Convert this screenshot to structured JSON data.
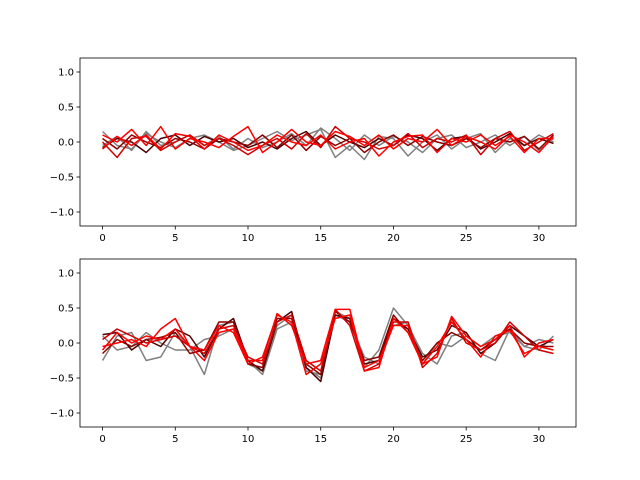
{
  "chart_data": [
    {
      "type": "line",
      "xlim": [
        -1.55,
        32.55
      ],
      "ylim": [
        -1.2,
        1.2
      ],
      "xticks": [
        0,
        5,
        10,
        15,
        20,
        25,
        30
      ],
      "xtick_labels": [
        "0",
        "5",
        "10",
        "15",
        "20",
        "25",
        "30"
      ],
      "yticks": [
        -1.0,
        -0.5,
        0.0,
        0.5,
        1.0
      ],
      "ytick_labels": [
        "−1.0",
        "−0.5",
        "0.0",
        "0.5",
        "1.0"
      ],
      "grid": false,
      "series": [
        {
          "color": "#808080",
          "x": [
            0,
            1,
            2,
            3,
            4,
            5,
            6,
            7,
            8,
            9,
            10,
            11,
            12,
            13,
            14,
            15,
            16,
            17,
            18,
            19,
            20,
            21,
            22,
            23,
            24,
            25,
            26,
            27,
            28,
            29,
            30,
            31
          ],
          "values": [
            0.15,
            -0.05,
            -0.1,
            0.12,
            0.0,
            -0.08,
            0.05,
            0.1,
            0.0,
            -0.12,
            -0.05,
            0.05,
            0.15,
            0.02,
            0.1,
            0.18,
            -0.22,
            -0.05,
            -0.25,
            0.08,
            0.05,
            -0.2,
            0.0,
            0.1,
            -0.1,
            0.05,
            0.12,
            -0.15,
            0.05,
            -0.05,
            0.1,
            0.0
          ]
        },
        {
          "color": "#808080",
          "x": [
            0,
            1,
            2,
            3,
            4,
            5,
            6,
            7,
            8,
            9,
            10,
            11,
            12,
            13,
            14,
            15,
            16,
            17,
            18,
            19,
            20,
            21,
            22,
            23,
            24,
            25,
            26,
            27,
            28,
            29,
            30,
            31
          ],
          "values": [
            -0.05,
            0.08,
            -0.12,
            0.15,
            -0.05,
            0.0,
            0.1,
            -0.05,
            0.08,
            -0.1,
            0.05,
            -0.08,
            0.0,
            0.12,
            -0.05,
            0.2,
            0.05,
            -0.12,
            0.1,
            -0.05,
            0.08,
            0.0,
            -0.15,
            0.05,
            0.1,
            -0.08,
            0.0,
            0.1,
            -0.05,
            0.08,
            -0.12,
            0.05
          ]
        },
        {
          "color": "#4d0000",
          "x": [
            0,
            1,
            2,
            3,
            4,
            5,
            6,
            7,
            8,
            9,
            10,
            11,
            12,
            13,
            14,
            15,
            16,
            17,
            18,
            19,
            20,
            21,
            22,
            23,
            24,
            25,
            26,
            27,
            28,
            29,
            30,
            31
          ],
          "values": [
            -0.08,
            0.05,
            0.0,
            -0.15,
            0.05,
            0.1,
            -0.05,
            0.08,
            0.0,
            0.05,
            -0.08,
            0.0,
            -0.1,
            0.05,
            0.15,
            -0.05,
            0.1,
            0.0,
            -0.08,
            0.05,
            -0.05,
            0.1,
            0.05,
            -0.12,
            0.05,
            0.08,
            -0.1,
            0.0,
            0.12,
            -0.05,
            0.05,
            -0.02
          ]
        },
        {
          "color": "#8b0000",
          "x": [
            0,
            1,
            2,
            3,
            4,
            5,
            6,
            7,
            8,
            9,
            10,
            11,
            12,
            13,
            14,
            15,
            16,
            17,
            18,
            19,
            20,
            21,
            22,
            23,
            24,
            25,
            26,
            27,
            28,
            29,
            30,
            31
          ],
          "values": [
            0.05,
            -0.1,
            0.1,
            0.0,
            -0.08,
            0.05,
            0.0,
            -0.1,
            0.05,
            0.0,
            -0.05,
            0.1,
            -0.08,
            0.1,
            -0.12,
            0.08,
            -0.05,
            0.05,
            -0.15,
            0.0,
            0.1,
            -0.05,
            0.08,
            0.0,
            -0.05,
            0.05,
            -0.08,
            0.05,
            0.0,
            0.08,
            -0.1,
            0.1
          ]
        },
        {
          "color": "#cc0000",
          "x": [
            0,
            1,
            2,
            3,
            4,
            5,
            6,
            7,
            8,
            9,
            10,
            11,
            12,
            13,
            14,
            15,
            16,
            17,
            18,
            19,
            20,
            21,
            22,
            23,
            24,
            25,
            26,
            27,
            28,
            29,
            30,
            31
          ],
          "values": [
            0.0,
            -0.22,
            0.05,
            0.08,
            -0.12,
            0.0,
            0.1,
            -0.05,
            0.05,
            -0.05,
            -0.18,
            -0.05,
            0.05,
            -0.1,
            0.12,
            -0.08,
            0.22,
            0.05,
            0.0,
            -0.1,
            -0.05,
            0.12,
            -0.08,
            0.05,
            0.0,
            0.1,
            -0.18,
            0.05,
            0.15,
            -0.12,
            0.0,
            0.12
          ]
        },
        {
          "color": "#ff0000",
          "x": [
            0,
            1,
            2,
            3,
            4,
            5,
            6,
            7,
            8,
            9,
            10,
            11,
            12,
            13,
            14,
            15,
            16,
            17,
            18,
            19,
            20,
            21,
            22,
            23,
            24,
            25,
            26,
            27,
            28,
            29,
            30,
            31
          ],
          "values": [
            0.1,
            0.0,
            0.18,
            -0.05,
            0.22,
            -0.1,
            0.05,
            0.0,
            -0.08,
            0.08,
            0.22,
            -0.15,
            0.0,
            0.18,
            0.0,
            -0.05,
            0.15,
            0.08,
            -0.05,
            0.1,
            -0.1,
            0.05,
            0.0,
            0.18,
            -0.05,
            0.08,
            0.0,
            -0.1,
            0.1,
            0.0,
            -0.15,
            0.08
          ]
        },
        {
          "color": "#ff0000",
          "x": [
            0,
            1,
            2,
            3,
            4,
            5,
            6,
            7,
            8,
            9,
            10,
            11,
            12,
            13,
            14,
            15,
            16,
            17,
            18,
            19,
            20,
            21,
            22,
            23,
            24,
            25,
            26,
            27,
            28,
            29,
            30,
            31
          ],
          "values": [
            -0.1,
            0.08,
            -0.05,
            0.1,
            -0.1,
            0.12,
            0.08,
            -0.1,
            0.1,
            0.0,
            -0.12,
            -0.05,
            0.1,
            0.0,
            -0.05,
            0.1,
            -0.1,
            0.0,
            0.05,
            -0.2,
            0.0,
            0.08,
            0.1,
            -0.15,
            0.05,
            0.0,
            0.1,
            -0.05,
            0.08,
            -0.15,
            0.05,
            0.05
          ]
        }
      ]
    },
    {
      "type": "line",
      "xlim": [
        -1.55,
        32.55
      ],
      "ylim": [
        -1.2,
        1.2
      ],
      "xticks": [
        0,
        5,
        10,
        15,
        20,
        25,
        30
      ],
      "xtick_labels": [
        "0",
        "5",
        "10",
        "15",
        "20",
        "25",
        "30"
      ],
      "yticks": [
        -1.0,
        -0.5,
        0.0,
        0.5,
        1.0
      ],
      "ytick_labels": [
        "−1.0",
        "−0.5",
        "0.0",
        "0.5",
        "1.0"
      ],
      "grid": false,
      "series": [
        {
          "color": "#808080",
          "x": [
            0,
            1,
            2,
            3,
            4,
            5,
            6,
            7,
            8,
            9,
            10,
            11,
            12,
            13,
            14,
            15,
            16,
            17,
            18,
            19,
            20,
            21,
            22,
            23,
            24,
            25,
            26,
            27,
            28,
            29,
            30,
            31
          ],
          "values": [
            -0.25,
            0.1,
            0.15,
            -0.25,
            -0.2,
            0.15,
            -0.05,
            -0.45,
            0.25,
            0.3,
            -0.25,
            -0.45,
            0.2,
            0.3,
            -0.35,
            -0.5,
            0.45,
            0.35,
            -0.35,
            -0.1,
            0.5,
            0.25,
            -0.15,
            -0.3,
            0.1,
            0.15,
            -0.15,
            -0.25,
            0.2,
            -0.05,
            -0.1,
            0.1
          ]
        },
        {
          "color": "#808080",
          "x": [
            0,
            1,
            2,
            3,
            4,
            5,
            6,
            7,
            8,
            9,
            10,
            11,
            12,
            13,
            14,
            15,
            16,
            17,
            18,
            19,
            20,
            21,
            22,
            23,
            24,
            25,
            26,
            27,
            28,
            29,
            30,
            31
          ],
          "values": [
            0.1,
            -0.1,
            -0.05,
            0.15,
            0.0,
            -0.1,
            -0.1,
            0.05,
            0.1,
            0.2,
            -0.3,
            -0.4,
            0.25,
            0.4,
            -0.4,
            -0.45,
            0.4,
            0.3,
            -0.2,
            -0.3,
            0.25,
            0.3,
            -0.3,
            0.0,
            -0.05,
            0.1,
            -0.05,
            0.1,
            0.15,
            -0.05,
            0.05,
            0.0
          ]
        },
        {
          "color": "#4d0000",
          "x": [
            0,
            1,
            2,
            3,
            4,
            5,
            6,
            7,
            8,
            9,
            10,
            11,
            12,
            13,
            14,
            15,
            16,
            17,
            18,
            19,
            20,
            21,
            22,
            23,
            24,
            25,
            26,
            27,
            28,
            29,
            30,
            31
          ],
          "values": [
            0.12,
            0.15,
            -0.1,
            0.05,
            -0.05,
            0.2,
            0.1,
            -0.2,
            0.2,
            0.35,
            -0.25,
            -0.4,
            0.3,
            0.45,
            -0.35,
            -0.55,
            0.4,
            0.35,
            -0.3,
            -0.25,
            0.35,
            0.2,
            -0.2,
            -0.1,
            0.25,
            0.15,
            -0.15,
            0.0,
            0.25,
            0.1,
            -0.05,
            0.05
          ]
        },
        {
          "color": "#8b0000",
          "x": [
            0,
            1,
            2,
            3,
            4,
            5,
            6,
            7,
            8,
            9,
            10,
            11,
            12,
            13,
            14,
            15,
            16,
            17,
            18,
            19,
            20,
            21,
            22,
            23,
            24,
            25,
            26,
            27,
            28,
            29,
            30,
            31
          ],
          "values": [
            -0.15,
            0.05,
            -0.05,
            0.05,
            0.08,
            0.15,
            -0.15,
            -0.1,
            0.3,
            0.3,
            -0.3,
            -0.35,
            0.35,
            0.35,
            -0.3,
            -0.45,
            0.45,
            0.3,
            -0.25,
            -0.2,
            0.4,
            0.15,
            -0.25,
            0.0,
            0.15,
            0.05,
            -0.1,
            0.05,
            0.2,
            0.0,
            -0.05,
            -0.05
          ]
        },
        {
          "color": "#cc0000",
          "x": [
            0,
            1,
            2,
            3,
            4,
            5,
            6,
            7,
            8,
            9,
            10,
            11,
            12,
            13,
            14,
            15,
            16,
            17,
            18,
            19,
            20,
            21,
            22,
            23,
            24,
            25,
            26,
            27,
            28,
            29,
            30,
            31
          ],
          "values": [
            0.05,
            0.2,
            0.1,
            0.0,
            0.05,
            0.1,
            -0.05,
            -0.15,
            0.2,
            0.25,
            -0.2,
            -0.3,
            0.3,
            0.4,
            -0.25,
            -0.4,
            0.48,
            0.25,
            -0.4,
            -0.3,
            0.3,
            0.3,
            -0.35,
            -0.15,
            0.35,
            0.0,
            -0.1,
            0.0,
            0.3,
            0.1,
            -0.1,
            -0.15
          ]
        },
        {
          "color": "#ff0000",
          "x": [
            0,
            1,
            2,
            3,
            4,
            5,
            6,
            7,
            8,
            9,
            10,
            11,
            12,
            13,
            14,
            15,
            16,
            17,
            18,
            19,
            20,
            21,
            22,
            23,
            24,
            25,
            26,
            27,
            28,
            29,
            30,
            31
          ],
          "values": [
            -0.05,
            0.0,
            0.05,
            -0.05,
            0.2,
            0.35,
            -0.05,
            -0.25,
            0.15,
            0.2,
            -0.25,
            -0.25,
            0.42,
            0.25,
            -0.3,
            -0.25,
            0.48,
            0.48,
            -0.35,
            -0.25,
            0.25,
            0.25,
            -0.3,
            -0.2,
            0.38,
            0.1,
            -0.05,
            0.05,
            0.25,
            -0.2,
            0.0,
            0.05
          ]
        },
        {
          "color": "#ff0000",
          "x": [
            0,
            1,
            2,
            3,
            4,
            5,
            6,
            7,
            8,
            9,
            10,
            11,
            12,
            13,
            14,
            15,
            16,
            17,
            18,
            19,
            20,
            21,
            22,
            23,
            24,
            25,
            26,
            27,
            28,
            29,
            30,
            31
          ],
          "values": [
            -0.1,
            0.15,
            0.0,
            0.1,
            0.05,
            0.2,
            -0.05,
            -0.1,
            0.25,
            0.15,
            -0.3,
            -0.2,
            0.4,
            0.3,
            -0.45,
            -0.3,
            0.35,
            0.4,
            -0.4,
            -0.35,
            0.35,
            0.15,
            -0.3,
            -0.05,
            0.3,
            0.05,
            -0.2,
            0.1,
            0.18,
            -0.15,
            -0.05,
            -0.1
          ]
        }
      ]
    }
  ]
}
